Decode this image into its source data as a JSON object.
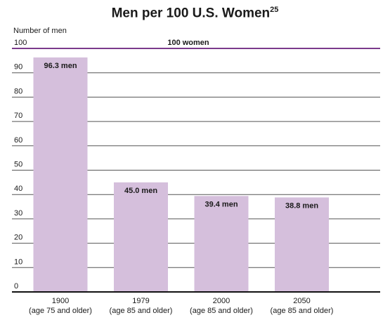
{
  "chart_data": {
    "type": "bar",
    "title": "Men per 100 U.S. Women",
    "title_superscript": "25",
    "ylabel": "Number of men",
    "ylim": [
      0,
      100
    ],
    "yticks": [
      0,
      10,
      20,
      30,
      40,
      50,
      60,
      70,
      80,
      90,
      100
    ],
    "grid": true,
    "categories": [
      {
        "year": "1900",
        "sub": "(age 75 and older)"
      },
      {
        "year": "1979",
        "sub": "(age 85 and older)"
      },
      {
        "year": "2000",
        "sub": "(age 85 and older)"
      },
      {
        "year": "2050",
        "sub": "(age 85 and older)"
      }
    ],
    "values": [
      96.3,
      45.0,
      39.4,
      38.8
    ],
    "data_labels": [
      "96.3 men",
      "45.0 men",
      "39.4 men",
      "38.8 men"
    ],
    "reference_line": {
      "value": 100,
      "label": "100 women"
    },
    "colors": {
      "bar": "#d5bfdc",
      "reference": "#7b3a8c",
      "grid": "#555555",
      "axis": "#111111"
    }
  }
}
